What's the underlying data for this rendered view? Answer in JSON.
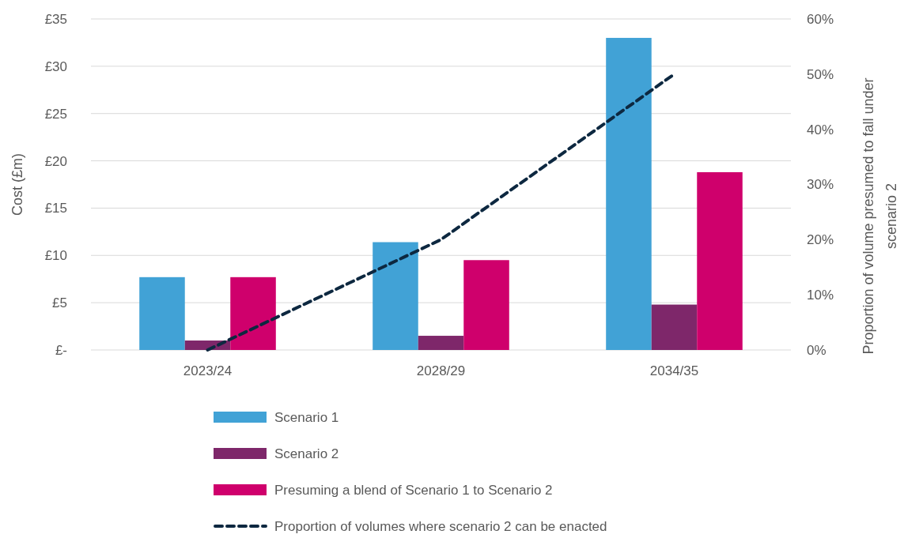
{
  "chart_data": {
    "type": "bar",
    "ylabel": "Cost (£m)",
    "y2label": "Proportion of volume presumed to fall under scenario 2",
    "categories": [
      "2023/24",
      "2028/29",
      "2034/35"
    ],
    "series": [
      {
        "name": "Scenario 1",
        "color": "#41a2d6",
        "values": [
          7.7,
          11.4,
          33.0
        ]
      },
      {
        "name": "Scenario 2",
        "color": "#7e276a",
        "values": [
          1.0,
          1.5,
          4.8
        ]
      },
      {
        "name": "Presuming a blend of Scenario 1 to Scenario 2",
        "color": "#cf006c",
        "values": [
          7.7,
          9.5,
          18.8
        ]
      },
      {
        "name": "Proportion of volumes where scenario 2 can be enacted",
        "type": "line",
        "axis": "y2",
        "color": "#0d2840",
        "line_style": "dashed",
        "marker": "none",
        "values": [
          0,
          20,
          50
        ]
      }
    ],
    "ylim": [
      0,
      35
    ],
    "yticks": [
      {
        "value": 0,
        "label": "£-"
      },
      {
        "value": 5,
        "label": "£5"
      },
      {
        "value": 10,
        "label": "£10"
      },
      {
        "value": 15,
        "label": "£15"
      },
      {
        "value": 20,
        "label": "£20"
      },
      {
        "value": 25,
        "label": "£25"
      },
      {
        "value": 30,
        "label": "£30"
      },
      {
        "value": 35,
        "label": "£35"
      }
    ],
    "y2lim": [
      0,
      60
    ],
    "y2ticks": [
      {
        "value": 0,
        "label": "0%"
      },
      {
        "value": 10,
        "label": "10%"
      },
      {
        "value": 20,
        "label": "20%"
      },
      {
        "value": 30,
        "label": "30%"
      },
      {
        "value": 40,
        "label": "40%"
      },
      {
        "value": 50,
        "label": "50%"
      },
      {
        "value": 60,
        "label": "60%"
      }
    ],
    "grid": "y",
    "legend": "bottom"
  }
}
